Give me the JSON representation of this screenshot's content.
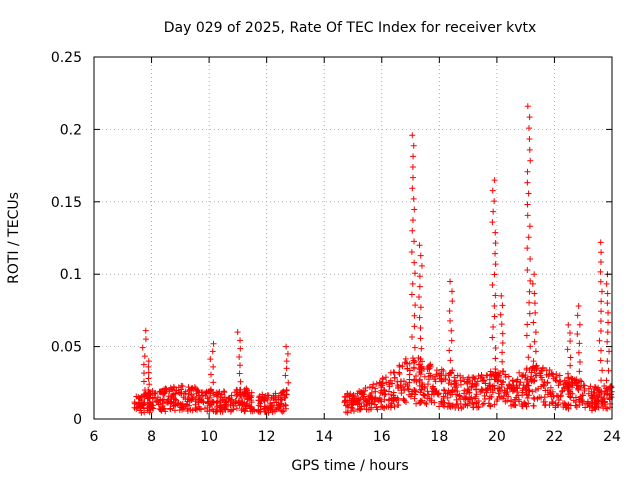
{
  "chart_data": {
    "type": "scatter",
    "title": "Day 029 of 2025, Rate Of TEC Index for receiver kvtx",
    "xlabel": "GPS time / hours",
    "ylabel": "ROTI / TECUs",
    "xlim": [
      6,
      24
    ],
    "ylim": [
      0,
      0.25
    ],
    "xticks": [
      6,
      8,
      10,
      12,
      14,
      16,
      18,
      20,
      22,
      24
    ],
    "yticks": [
      0,
      0.05,
      0.1,
      0.15,
      0.2,
      0.25
    ],
    "ytick_labels": [
      "0",
      "0.05",
      "0.1",
      "0.15",
      "0.2",
      "0.25"
    ],
    "grid": true,
    "marker": "+",
    "series": [
      {
        "name": "ROTI",
        "color": "#ff0000",
        "segments": [
          {
            "x": [
              7.4,
              8.2,
              9.0,
              9.8,
              10.6,
              11.3,
              11.6
            ],
            "y": [
              0.011,
              0.014,
              0.016,
              0.015,
              0.013,
              0.015,
              0.012
            ]
          },
          {
            "x": [
              11.7,
              12.2,
              12.7
            ],
            "y": [
              0.013,
              0.012,
              0.014
            ]
          },
          {
            "x": [
              14.7,
              15.2,
              15.6,
              16.0,
              16.5,
              16.9,
              17.5,
              18.0,
              18.5,
              19.0,
              19.5,
              20.0,
              20.5,
              21.0,
              21.5,
              22.0,
              22.5,
              23.0,
              23.5,
              24.0
            ],
            "y": [
              0.012,
              0.014,
              0.016,
              0.02,
              0.024,
              0.03,
              0.03,
              0.024,
              0.022,
              0.02,
              0.022,
              0.025,
              0.02,
              0.024,
              0.026,
              0.022,
              0.02,
              0.018,
              0.016,
              0.016
            ]
          }
        ],
        "peaks": [
          {
            "x": 7.75,
            "y": 0.061
          },
          {
            "x": 7.9,
            "y": 0.04
          },
          {
            "x": 10.1,
            "y": 0.052
          },
          {
            "x": 11.05,
            "y": 0.06
          },
          {
            "x": 12.7,
            "y": 0.05
          },
          {
            "x": 17.1,
            "y": 0.196
          },
          {
            "x": 17.35,
            "y": 0.12
          },
          {
            "x": 18.4,
            "y": 0.095
          },
          {
            "x": 19.9,
            "y": 0.165
          },
          {
            "x": 20.15,
            "y": 0.085
          },
          {
            "x": 21.1,
            "y": 0.216
          },
          {
            "x": 21.3,
            "y": 0.1
          },
          {
            "x": 22.5,
            "y": 0.065
          },
          {
            "x": 22.85,
            "y": 0.078
          },
          {
            "x": 23.6,
            "y": 0.122
          },
          {
            "x": 23.85,
            "y": 0.1
          }
        ]
      }
    ]
  }
}
